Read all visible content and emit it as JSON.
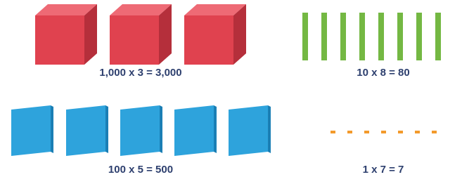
{
  "groups": [
    {
      "label": "1,000 x 3 = 3,000"
    },
    {
      "label": "10 x 8 = 80"
    },
    {
      "label": "100 x 5 = 500"
    },
    {
      "label": "1 x 7 = 7"
    }
  ]
}
